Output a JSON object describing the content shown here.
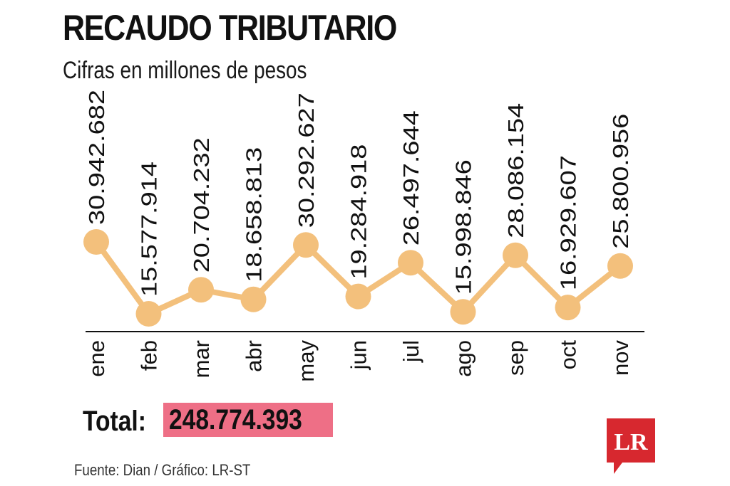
{
  "header": {
    "title": "RECAUDO TRIBUTARIO",
    "subtitle": "Cifras en millones de pesos"
  },
  "total": {
    "label": "Total:",
    "value": "248.774.393",
    "highlight_color": "#ee6f86"
  },
  "source": "Fuente: Dian / Gráfico: LR-ST",
  "logo": {
    "text": "LR",
    "color": "#d7282f"
  },
  "chart_data": {
    "type": "line",
    "categories": [
      "ene",
      "feb",
      "mar",
      "abr",
      "may",
      "jun",
      "jul",
      "ago",
      "sep",
      "oct",
      "nov"
    ],
    "values": [
      30942682,
      15577914,
      20704232,
      18658813,
      30292627,
      19284918,
      26497644,
      15998846,
      28086154,
      16929607,
      25800956
    ],
    "data_labels": [
      "30.942.682",
      "15.577.914",
      "20.704.232",
      "18.658.813",
      "30.292.627",
      "19.284.918",
      "26.497.644",
      "15.998.846",
      "28.086.154",
      "16.929.607",
      "25.800.956"
    ],
    "title": "RECAUDO TRIBUTARIO",
    "subtitle": "Cifras en millones de pesos",
    "grid": false,
    "legend": "none",
    "colors": {
      "line": "#f3c07c",
      "marker": "#f3c07c",
      "axis": "#111111"
    }
  }
}
